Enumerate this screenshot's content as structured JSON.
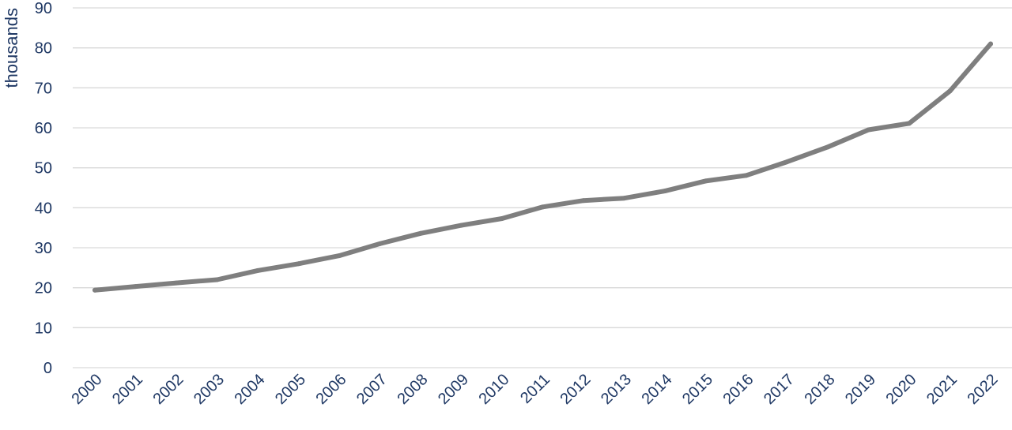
{
  "colors": {
    "line": "#7f7f7f",
    "grid": "#d9d9d9",
    "text": "#1f3864",
    "background": "#ffffff"
  },
  "chart_data": {
    "type": "line",
    "title": "",
    "xlabel": "",
    "ylabel": "thousands",
    "ylim": [
      0,
      90
    ],
    "y_ticks": [
      "0",
      "10",
      "20",
      "30",
      "40",
      "50",
      "60",
      "70",
      "80",
      "90"
    ],
    "grid": "horizontal",
    "legend": "none",
    "categories": [
      "2000",
      "2001",
      "2002",
      "2003",
      "2004",
      "2005",
      "2006",
      "2007",
      "2008",
      "2009",
      "2010",
      "2011",
      "2012",
      "2013",
      "2014",
      "2015",
      "2016",
      "2017",
      "2018",
      "2019",
      "2020",
      "2021",
      "2022"
    ],
    "series": [
      {
        "values": [
          19.4,
          20.3,
          21.2,
          22.0,
          24.3,
          26.0,
          28.0,
          31.0,
          33.6,
          35.6,
          37.3,
          40.2,
          41.8,
          42.4,
          44.2,
          46.7,
          48.1,
          51.5,
          55.2,
          59.5,
          61.1,
          69.2,
          81.0
        ]
      }
    ]
  }
}
